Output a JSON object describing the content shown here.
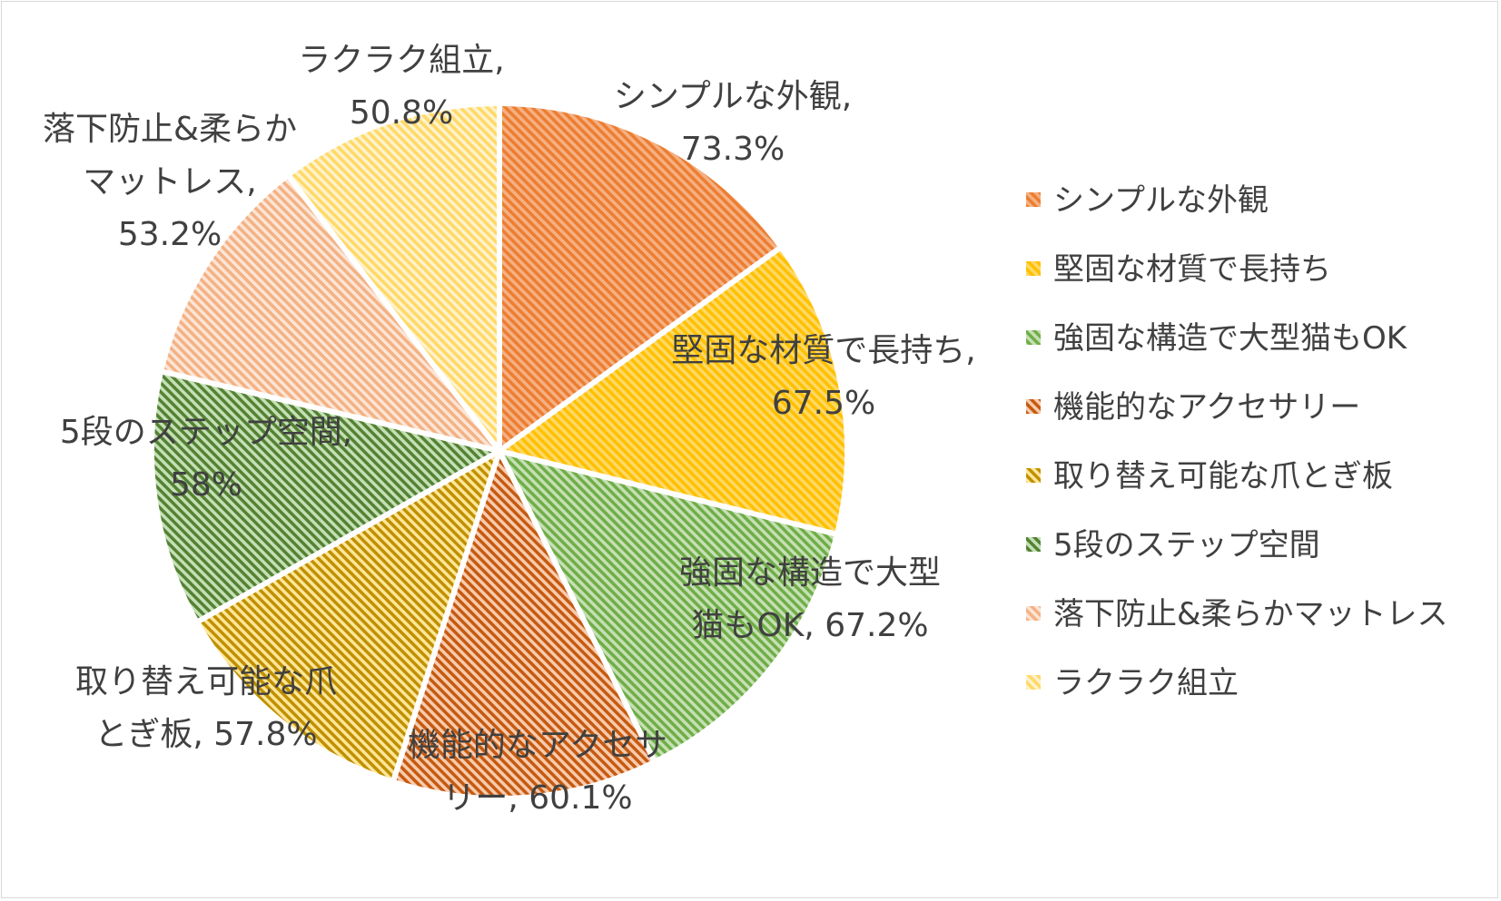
{
  "chart_data": {
    "type": "pie",
    "title": "",
    "legend_position": "right",
    "slices": [
      {
        "name": "シンプルな外観",
        "value": 73.3,
        "value_label": "73.3%",
        "label_lines": [
          "シンプルな外観,",
          "73.3%"
        ],
        "color": "#f4b183",
        "stripe": "#ed7d31"
      },
      {
        "name": "堅固な材質で長持ち",
        "value": 67.5,
        "value_label": "67.5%",
        "label_lines": [
          "堅固な材質で長持ち,",
          "67.5%"
        ],
        "color": "#ffd966",
        "stripe": "#ffc000"
      },
      {
        "name": "強固な構造で大型猫もOK",
        "value": 67.2,
        "value_label": "67.2%",
        "label_lines": [
          "強固な構造で大型",
          "猫もOK, 67.2%"
        ],
        "color": "#c5e0b4",
        "stripe": "#70ad47"
      },
      {
        "name": "機能的なアクセサリー",
        "value": 60.1,
        "value_label": "60.1%",
        "label_lines": [
          "機能的なアクセサ",
          "リー, 60.1%"
        ],
        "color": "#f8cbad",
        "stripe": "#c55a11"
      },
      {
        "name": "取り替え可能な爪とぎ板",
        "value": 57.8,
        "value_label": "57.8%",
        "label_lines": [
          "取り替え可能な爪",
          "とぎ板, 57.8%"
        ],
        "color": "#ffe699",
        "stripe": "#bf9000"
      },
      {
        "name": "5段のステップ空間",
        "value": 58,
        "value_label": "58%",
        "label_lines": [
          "5段のステップ空間,",
          "58%"
        ],
        "color": "#c5e0b4",
        "stripe": "#548235"
      },
      {
        "name": "落下防止&柔らかマットレス",
        "value": 53.2,
        "value_label": "53.2%",
        "label_lines": [
          "落下防止&柔らか",
          "マットレス,",
          "53.2%"
        ],
        "color": "#fbe5d6",
        "stripe": "#f4b183"
      },
      {
        "name": "ラクラク組立",
        "value": 50.8,
        "value_label": "50.8%",
        "label_lines": [
          "ラクラク組立,",
          "50.8%"
        ],
        "color": "#fff2cc",
        "stripe": "#ffd966"
      }
    ]
  }
}
